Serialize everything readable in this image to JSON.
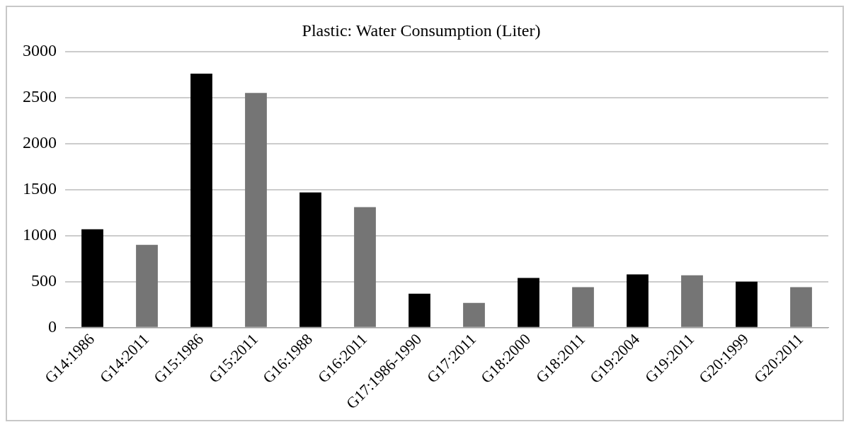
{
  "chart_data": {
    "type": "bar",
    "title": "Plastic: Water Consumption (Liter)",
    "categories": [
      "G14:1986",
      "G14:2011",
      "G15:1986",
      "G15:2011",
      "G16:1988",
      "G16:2011",
      "G17:1986-1990",
      "G17:2011",
      "G18:2000",
      "G18:2011",
      "G19:2004",
      "G19:2011",
      "G20:1999",
      "G20:2011"
    ],
    "values": [
      1070,
      900,
      2760,
      2550,
      1470,
      1310,
      370,
      270,
      540,
      440,
      580,
      570,
      500,
      440
    ],
    "colors": [
      "#000000",
      "#757575",
      "#000000",
      "#757575",
      "#000000",
      "#757575",
      "#000000",
      "#757575",
      "#000000",
      "#757575",
      "#000000",
      "#757575",
      "#000000",
      "#757575"
    ],
    "ylim": [
      0,
      3000
    ],
    "yticks": [
      0,
      500,
      1000,
      1500,
      2000,
      2500,
      3000
    ],
    "grid": "y",
    "legend": false
  }
}
